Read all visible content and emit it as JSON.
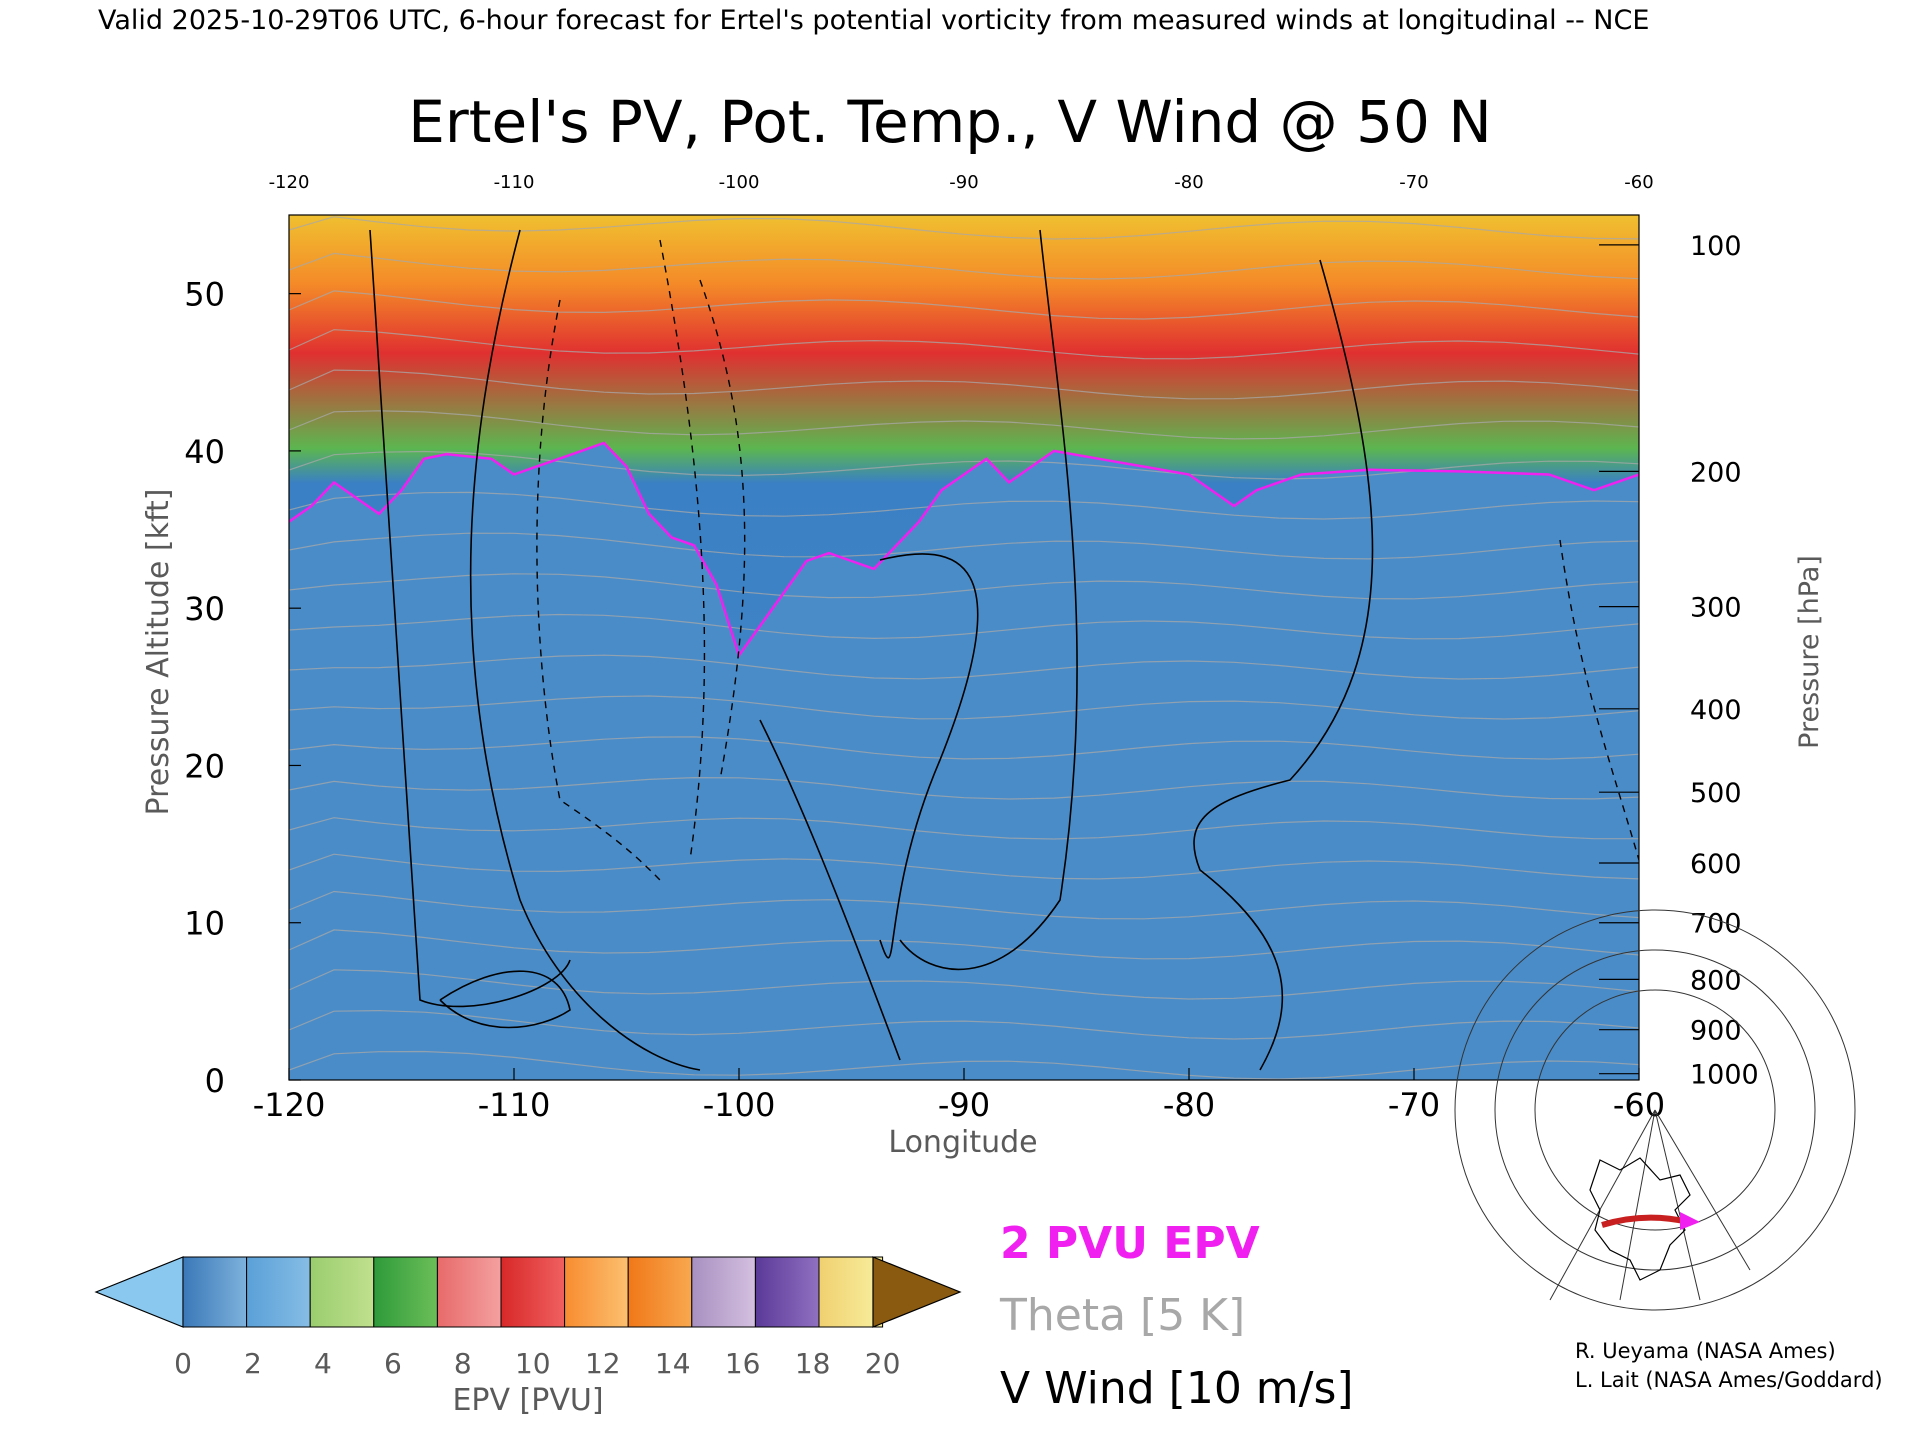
{
  "header": {
    "valid_line": "Valid 2025-10-29T06 UTC, 6-hour forecast for Ertel's potential vorticity from measured winds at longitudinal -- NCE"
  },
  "chart_data": {
    "type": "heatmap",
    "title": "Ertel's PV, Pot. Temp., V Wind @ 50 N",
    "xlabel": "Longitude",
    "ylabel_left": "Pressure Altitude [kft]",
    "ylabel_right": "Pressure [hPa]",
    "xlim": [
      -120,
      -60
    ],
    "ylim": [
      0,
      55
    ],
    "x_ticks": [
      "-120",
      "-110",
      "-100",
      "-90",
      "-80",
      "-70",
      "-60"
    ],
    "x_tick_values": [
      -120,
      -110,
      -100,
      -90,
      -80,
      -70,
      -60
    ],
    "top_ticks": [
      "-120",
      "-110",
      "-100",
      "-90",
      "-80",
      "-70",
      "-60"
    ],
    "y_ticks": [
      "0",
      "10",
      "20",
      "30",
      "40",
      "50"
    ],
    "y_tick_values": [
      0,
      10,
      20,
      30,
      40,
      50
    ],
    "pressure_ticks": [
      "100",
      "200",
      "300",
      "400",
      "500",
      "600",
      "700",
      "800",
      "900",
      "1000"
    ],
    "pressure_tick_alt_kft": [
      53.1,
      38.7,
      30.1,
      23.6,
      18.3,
      13.8,
      10.0,
      6.4,
      3.2,
      0.4
    ],
    "tropopause_2pvu_kft": [
      [
        -120,
        35.5
      ],
      [
        -119,
        36.5
      ],
      [
        -118,
        38.0
      ],
      [
        -117,
        37.0
      ],
      [
        -116,
        36.0
      ],
      [
        -115,
        37.5
      ],
      [
        -114,
        39.5
      ],
      [
        -113,
        39.8
      ],
      [
        -111,
        39.5
      ],
      [
        -110,
        38.5
      ],
      [
        -109,
        39.0
      ],
      [
        -108,
        39.5
      ],
      [
        -107,
        40.0
      ],
      [
        -106,
        40.5
      ],
      [
        -105,
        39.0
      ],
      [
        -104,
        36.0
      ],
      [
        -103,
        34.5
      ],
      [
        -102,
        34.0
      ],
      [
        -101,
        31.5
      ],
      [
        -100,
        27.0
      ],
      [
        -99,
        29.0
      ],
      [
        -98,
        31.0
      ],
      [
        -97,
        33.0
      ],
      [
        -96,
        33.5
      ],
      [
        -95,
        33.0
      ],
      [
        -94,
        32.5
      ],
      [
        -93,
        34.0
      ],
      [
        -92,
        35.5
      ],
      [
        -91,
        37.5
      ],
      [
        -90,
        38.5
      ],
      [
        -89,
        39.5
      ],
      [
        -88,
        38.0
      ],
      [
        -87,
        39.0
      ],
      [
        -86,
        40.0
      ],
      [
        -84,
        39.5
      ],
      [
        -82,
        39.0
      ],
      [
        -80,
        38.5
      ],
      [
        -78,
        36.5
      ],
      [
        -77,
        37.5
      ],
      [
        -75,
        38.5
      ],
      [
        -72,
        38.8
      ],
      [
        -68,
        38.7
      ],
      [
        -64,
        38.5
      ],
      [
        -62,
        37.5
      ],
      [
        -60,
        38.5
      ]
    ],
    "colorbar": {
      "label": "EPV [PVU]",
      "ticks": [
        "0",
        "2",
        "4",
        "6",
        "8",
        "10",
        "12",
        "14",
        "16",
        "18",
        "20"
      ],
      "under_color": "#8ac8f0",
      "over_color": "#8a5a10",
      "bands": [
        [
          "#3a78b8",
          "#7eb2dc"
        ],
        [
          "#5aa0d8",
          "#86bde5"
        ],
        [
          "#9acd6e",
          "#c0e08e"
        ],
        [
          "#2e9a3a",
          "#6cbf58"
        ],
        [
          "#e86a6a",
          "#f4a0a0"
        ],
        [
          "#d82828",
          "#f06060"
        ],
        [
          "#f88c30",
          "#fcc070"
        ],
        [
          "#f07818",
          "#f8a850"
        ],
        [
          "#a890c0",
          "#d4c0e0"
        ],
        [
          "#5a3a98",
          "#9070c0"
        ],
        [
          "#f0d070",
          "#f8f0a0"
        ]
      ]
    }
  },
  "legend": {
    "epv_line": "2 PVU EPV",
    "theta_line": "Theta [5 K]",
    "wind_line": "V Wind [10 m/s]",
    "epv_color": "#f020f0",
    "theta_color": "#a8a8a8",
    "wind_color": "#000000"
  },
  "credits": {
    "line1": "R. Ueyama (NASA Ames)",
    "line2": "L. Lait (NASA Ames/Goddard)"
  },
  "inset_map": {
    "icon": "north-america-section-map",
    "section_color": "#c82020",
    "marker_color": "#f020f0"
  }
}
